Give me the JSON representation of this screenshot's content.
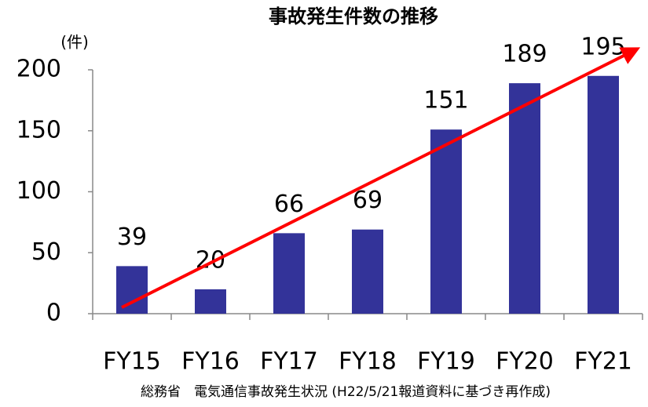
{
  "chart_data": {
    "type": "bar",
    "title": "事故発生件数の推移",
    "y_axis_label": "(件)",
    "categories": [
      "FY15",
      "FY16",
      "FY17",
      "FY18",
      "FY19",
      "FY20",
      "FY21"
    ],
    "values": [
      39,
      20,
      66,
      69,
      151,
      189,
      195
    ],
    "color": "#333399",
    "ylim": [
      0,
      200
    ],
    "yticks": [
      0,
      50,
      100,
      150,
      200
    ],
    "grid": false,
    "source": "総務省　電気通信事故発生状況 (H22/5/21報道資料に基づき再作成)"
  }
}
